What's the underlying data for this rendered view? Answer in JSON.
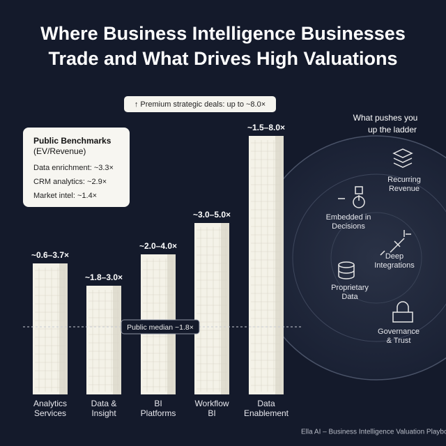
{
  "title": [
    "Where Business Intelligence Businesses",
    "Trade and What Drives High Valuations"
  ],
  "callout": "↑ Premium strategic deals: up to ~8.0×",
  "benchmarks": {
    "title": [
      "Public Benchmarks",
      "(EV/Revenue)"
    ],
    "items": [
      "Data enrichment: ~3.3×",
      "CRM analytics: ~2.9×",
      "Market intel: ~1.4×"
    ]
  },
  "median": "Public median ~1.8×",
  "columns": [
    {
      "label": [
        "Analytics",
        "Services"
      ],
      "range": "~0.6–3.7×"
    },
    {
      "label": [
        "Data &",
        "Insight"
      ],
      "range": "~1.8–3.0×"
    },
    {
      "label": [
        "BI",
        "Platforms"
      ],
      "range": "~2.0–4.0×"
    },
    {
      "label": [
        "Workflow",
        "BI"
      ],
      "range": "~3.0–5.0×"
    },
    {
      "label": [
        "Data",
        "Enablement"
      ],
      "range": "~1.5–8.0×"
    }
  ],
  "drivers": {
    "title": [
      "What pushes you",
      "up the ladder"
    ],
    "items": [
      [
        "Recurring",
        "Revenue"
      ],
      [
        "Embedded in",
        "Decisions"
      ],
      [
        "Deep",
        "Integrations"
      ],
      [
        "Proprietary",
        "Data"
      ],
      [
        "Governance",
        "& Trust"
      ]
    ]
  },
  "footer": "Ella AI – Business Intelligence Valuation Playbook"
}
